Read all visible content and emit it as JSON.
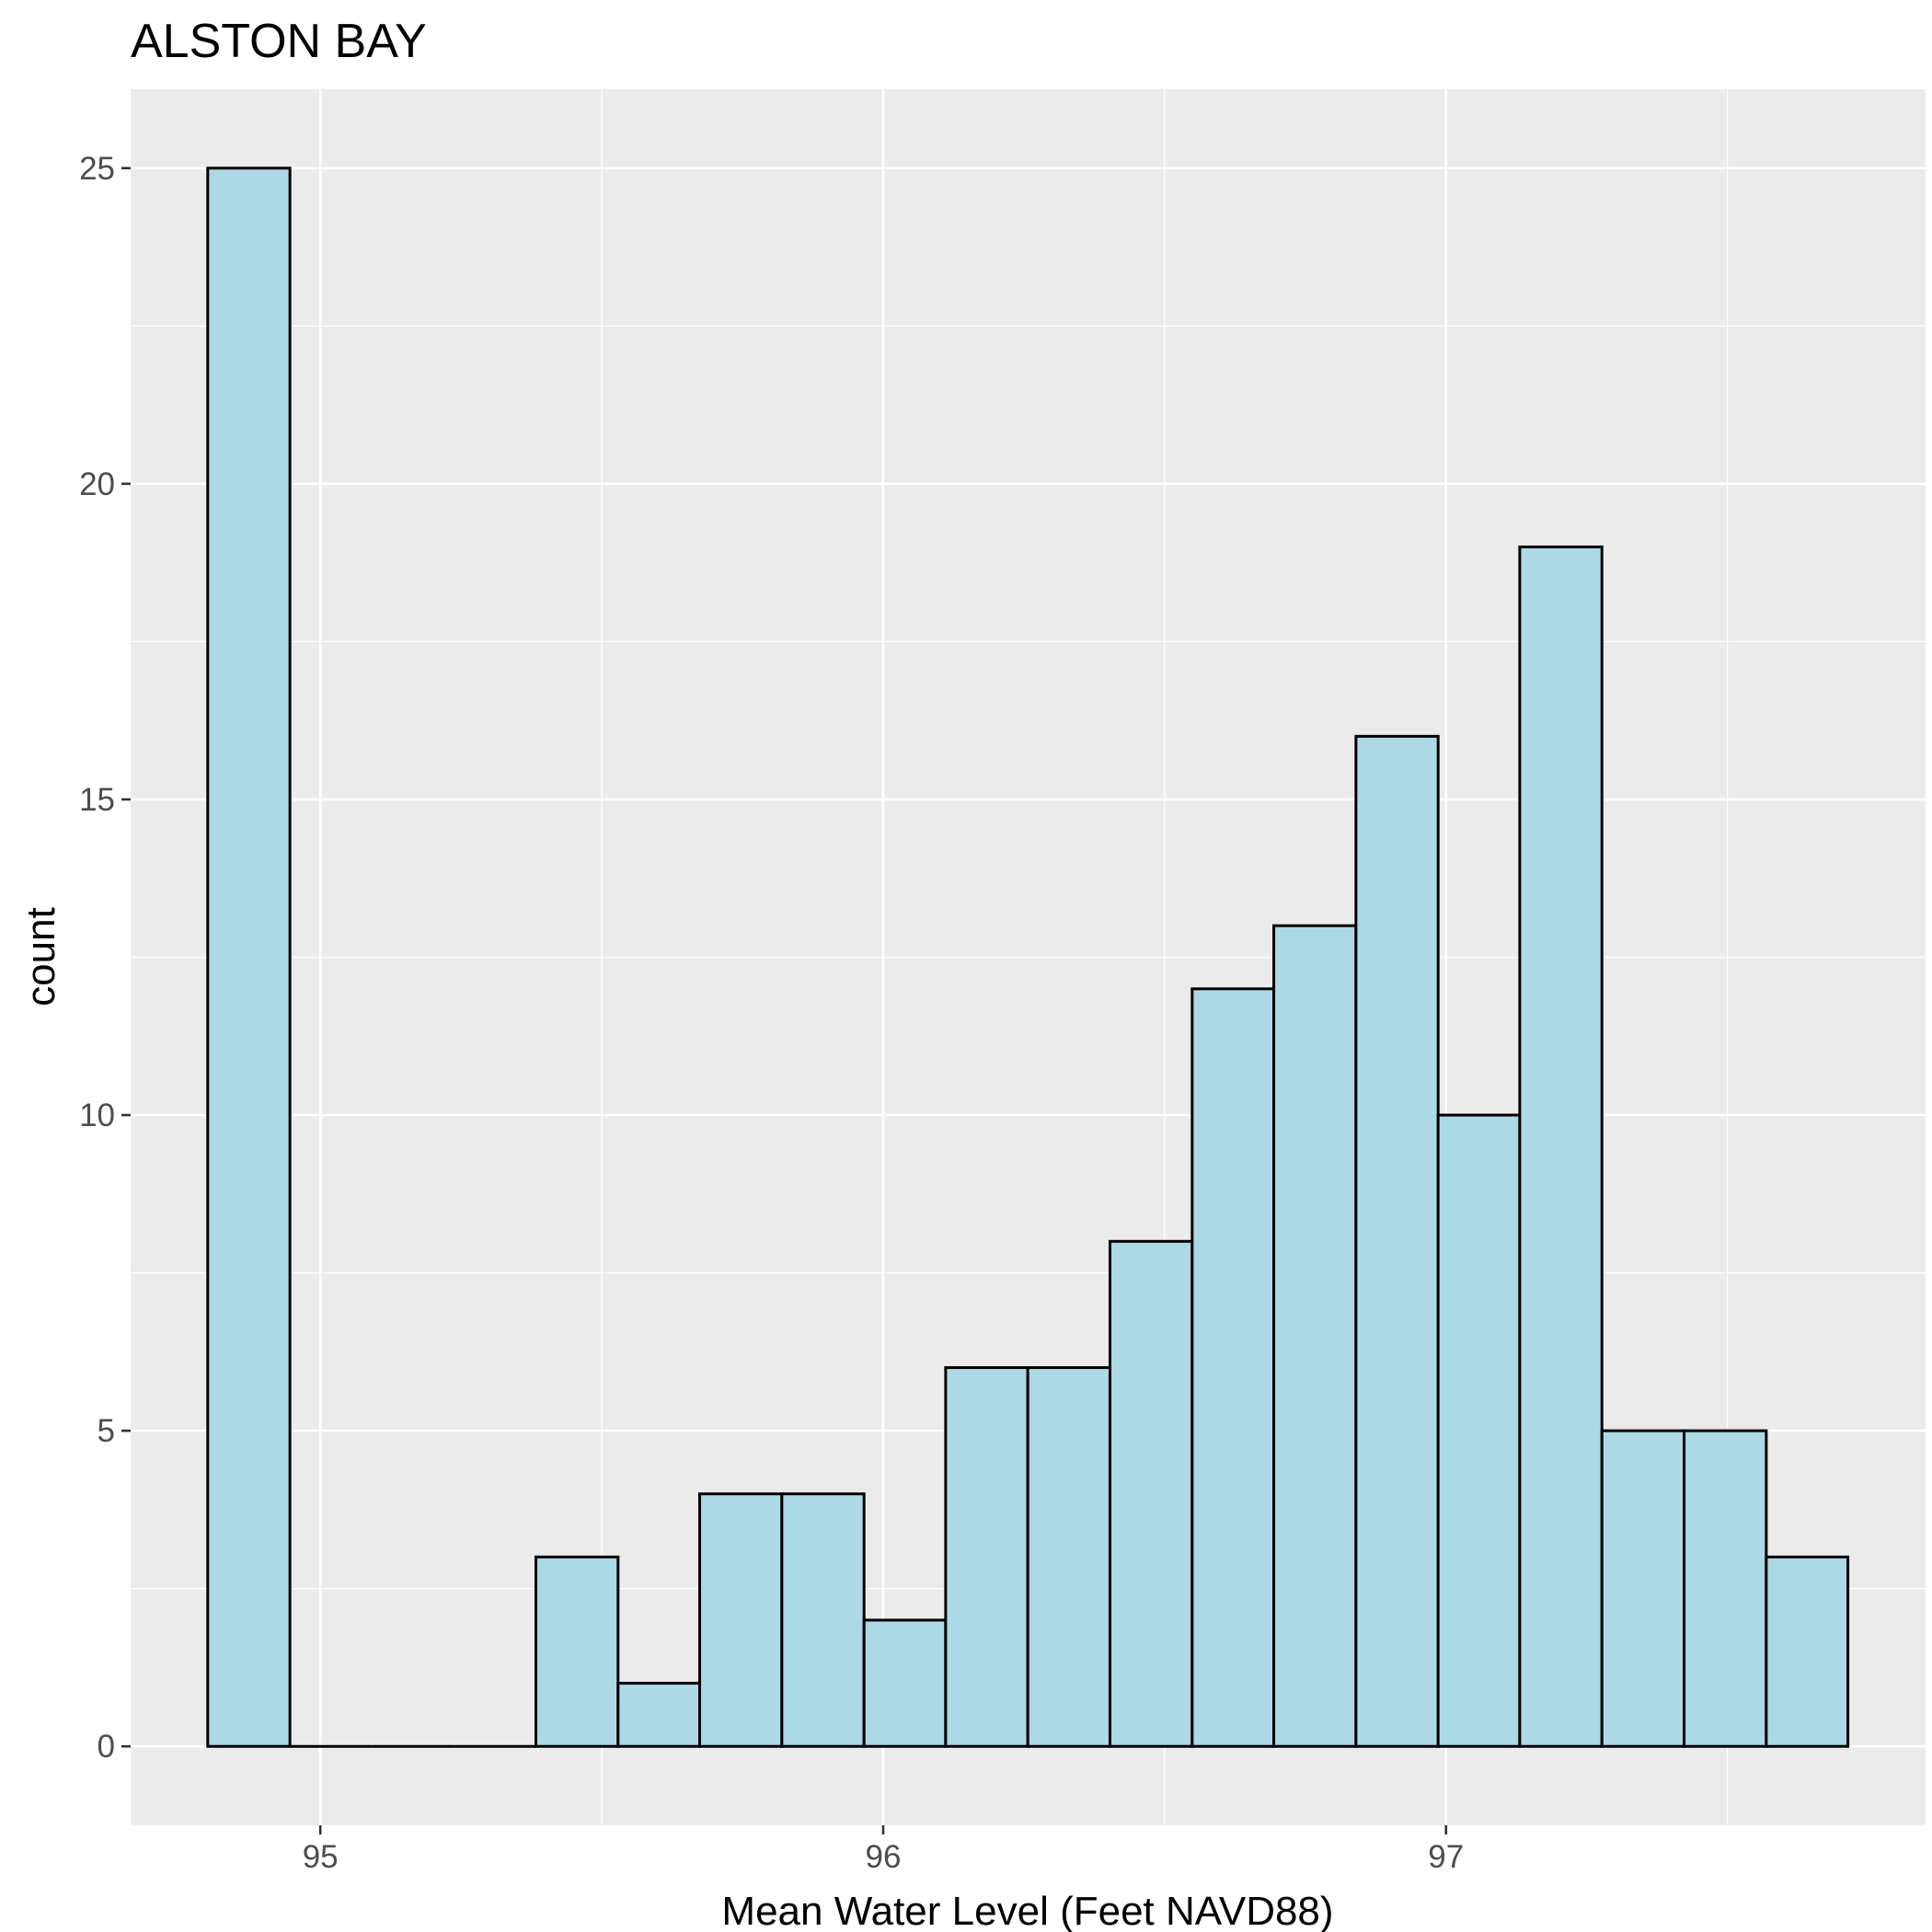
{
  "chart_data": {
    "type": "bar",
    "subtype": "histogram",
    "title": "ALSTON BAY",
    "xlabel": "Mean Water Level (Feet NAVD88)",
    "ylabel": "count",
    "bin_width": 0.1457,
    "bins": [
      {
        "start": 94.8,
        "end": 94.946,
        "count": 25
      },
      {
        "start": 94.946,
        "end": 95.091,
        "count": 0
      },
      {
        "start": 95.091,
        "end": 95.237,
        "count": 0
      },
      {
        "start": 95.237,
        "end": 95.383,
        "count": 0
      },
      {
        "start": 95.383,
        "end": 95.529,
        "count": 3
      },
      {
        "start": 95.529,
        "end": 95.674,
        "count": 1
      },
      {
        "start": 95.674,
        "end": 95.82,
        "count": 4
      },
      {
        "start": 95.82,
        "end": 95.966,
        "count": 4
      },
      {
        "start": 95.966,
        "end": 96.111,
        "count": 2
      },
      {
        "start": 96.111,
        "end": 96.257,
        "count": 6
      },
      {
        "start": 96.257,
        "end": 96.403,
        "count": 6
      },
      {
        "start": 96.403,
        "end": 96.549,
        "count": 8
      },
      {
        "start": 96.549,
        "end": 96.694,
        "count": 12
      },
      {
        "start": 96.694,
        "end": 96.84,
        "count": 13
      },
      {
        "start": 96.84,
        "end": 96.986,
        "count": 16
      },
      {
        "start": 96.986,
        "end": 97.131,
        "count": 10
      },
      {
        "start": 97.131,
        "end": 97.277,
        "count": 19
      },
      {
        "start": 97.277,
        "end": 97.423,
        "count": 5
      },
      {
        "start": 97.423,
        "end": 97.569,
        "count": 5
      },
      {
        "start": 97.569,
        "end": 97.714,
        "count": 3
      }
    ],
    "xlim": [
      94.663,
      97.852
    ],
    "ylim": [
      -1.25,
      26.25
    ],
    "x_ticks": [
      95,
      96,
      97
    ],
    "x_tick_labels": [
      "95",
      "96",
      "97"
    ],
    "y_ticks": [
      0,
      5,
      10,
      15,
      20,
      25
    ],
    "y_tick_labels": [
      "0",
      "5",
      "10",
      "15",
      "20",
      "25"
    ],
    "grid": true,
    "colors": {
      "panel_background": "#ebebeb",
      "grid_line": "#ffffff",
      "bar_fill": "#add8e6",
      "bar_outline": "#000000",
      "tick_mark": "#333333"
    }
  }
}
